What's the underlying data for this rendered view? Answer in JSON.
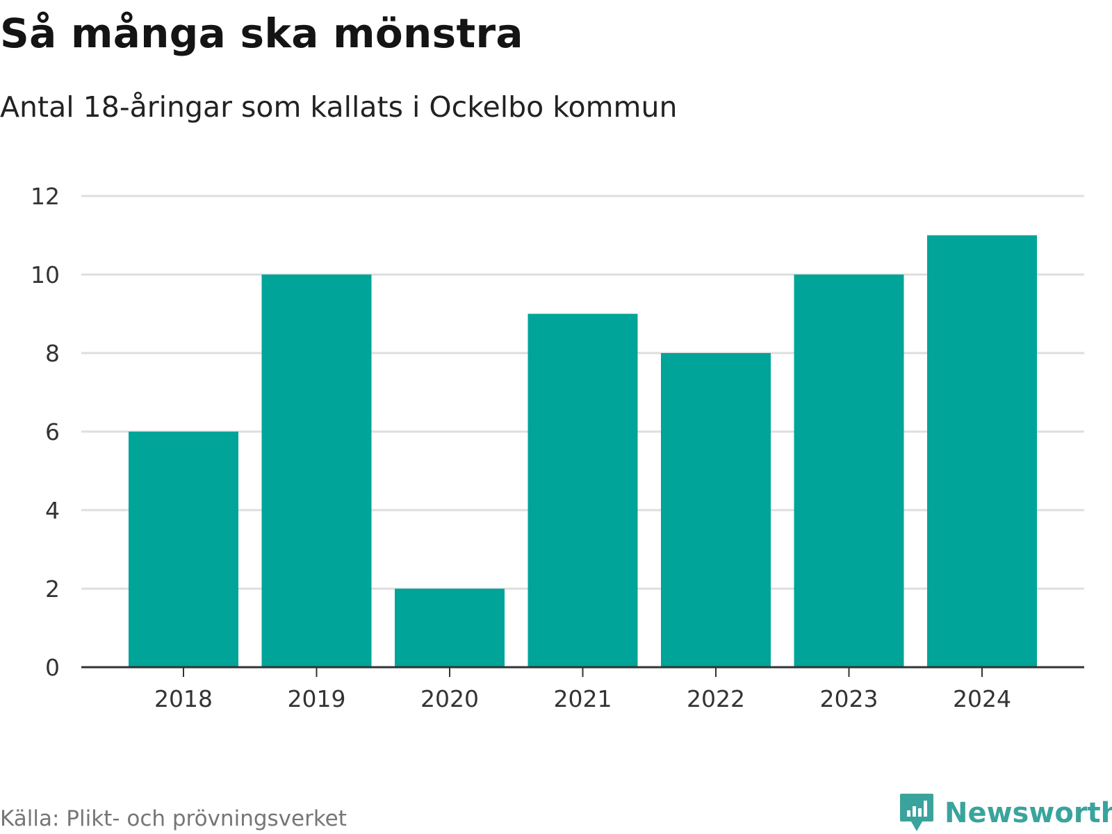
{
  "title": "Så många ska mönstra",
  "subtitle": "Antal 18-åringar som kallats i Ockelbo kommun",
  "source": "Källa: Plikt- och prövningsverket",
  "brand": {
    "name": "Newsworthy",
    "icon": "newsworthy-logo-icon"
  },
  "colors": {
    "bar": "#00a499",
    "grid": "#dedede",
    "axis": "#333333",
    "brand": "#3aa49c"
  },
  "chart_data": {
    "type": "bar",
    "title": "Så många ska mönstra",
    "subtitle": "Antal 18-åringar som kallats i Ockelbo kommun",
    "xlabel": "",
    "ylabel": "",
    "categories": [
      "2018",
      "2019",
      "2020",
      "2021",
      "2022",
      "2023",
      "2024"
    ],
    "values": [
      6,
      10,
      2,
      9,
      8,
      10,
      11
    ],
    "ylim": [
      0,
      12
    ],
    "yticks": [
      0,
      2,
      4,
      6,
      8,
      10,
      12
    ],
    "grid": true,
    "legend": "none"
  }
}
